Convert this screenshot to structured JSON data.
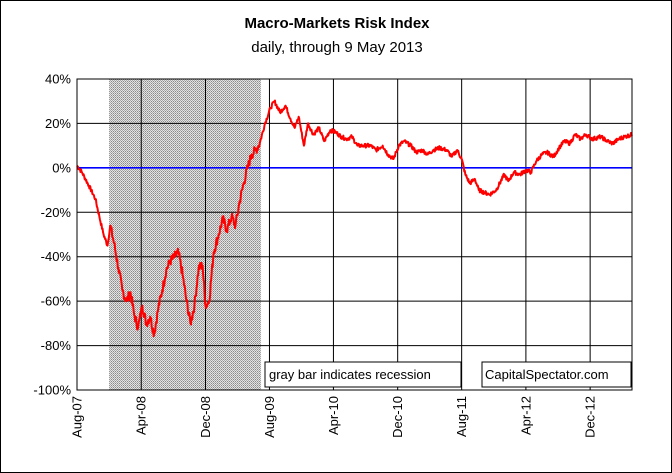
{
  "chart_data": {
    "type": "line",
    "title": "Macro-Markets Risk Index",
    "subtitle": "daily, through 9 May 2013",
    "xlabel": "",
    "ylabel": "",
    "x_tick_labels": [
      "Aug-07",
      "Apr-08",
      "Dec-08",
      "Aug-09",
      "Apr-10",
      "Dec-10",
      "Aug-11",
      "Apr-12",
      "Dec-12"
    ],
    "x_tick_dates": [
      "2007-08-01",
      "2008-04-01",
      "2008-12-01",
      "2009-08-01",
      "2010-04-01",
      "2010-12-01",
      "2011-08-01",
      "2012-04-01",
      "2012-12-01"
    ],
    "xlim": [
      "2007-08-01",
      "2013-05-09"
    ],
    "y_tick_labels": [
      "40%",
      "20%",
      "0%",
      "-20%",
      "-40%",
      "-60%",
      "-80%",
      "-100%"
    ],
    "y_tick_values": [
      40,
      20,
      0,
      -20,
      -40,
      -60,
      -80,
      -100
    ],
    "ylim": [
      -100,
      40
    ],
    "y_unit": "%",
    "grid": true,
    "zero_line_color": "#0000ff",
    "series": [
      {
        "color": "#ff0000",
        "points": [
          [
            "2007-08-01",
            1
          ],
          [
            "2007-08-20",
            -2
          ],
          [
            "2007-09-15",
            -8
          ],
          [
            "2007-10-10",
            -14
          ],
          [
            "2007-10-25",
            -22
          ],
          [
            "2007-11-10",
            -30
          ],
          [
            "2007-11-25",
            -35
          ],
          [
            "2007-12-05",
            -26
          ],
          [
            "2007-12-20",
            -34
          ],
          [
            "2008-01-05",
            -45
          ],
          [
            "2008-01-20",
            -55
          ],
          [
            "2008-02-05",
            -60
          ],
          [
            "2008-02-20",
            -56
          ],
          [
            "2008-03-05",
            -66
          ],
          [
            "2008-03-20",
            -72
          ],
          [
            "2008-04-05",
            -62
          ],
          [
            "2008-04-20",
            -70
          ],
          [
            "2008-05-05",
            -67
          ],
          [
            "2008-05-20",
            -75
          ],
          [
            "2008-06-05",
            -63
          ],
          [
            "2008-06-20",
            -55
          ],
          [
            "2008-07-05",
            -46
          ],
          [
            "2008-07-20",
            -42
          ],
          [
            "2008-08-05",
            -40
          ],
          [
            "2008-08-20",
            -38
          ],
          [
            "2008-09-05",
            -48
          ],
          [
            "2008-09-20",
            -60
          ],
          [
            "2008-10-05",
            -70
          ],
          [
            "2008-10-20",
            -62
          ],
          [
            "2008-11-05",
            -45
          ],
          [
            "2008-11-20",
            -44
          ],
          [
            "2008-12-01",
            -62
          ],
          [
            "2008-12-15",
            -60
          ],
          [
            "2009-01-01",
            -38
          ],
          [
            "2009-01-20",
            -30
          ],
          [
            "2009-02-05",
            -23
          ],
          [
            "2009-02-20",
            -28
          ],
          [
            "2009-03-10",
            -22
          ],
          [
            "2009-03-25",
            -26
          ],
          [
            "2009-04-10",
            -15
          ],
          [
            "2009-04-25",
            -7
          ],
          [
            "2009-05-10",
            0
          ],
          [
            "2009-05-25",
            6
          ],
          [
            "2009-06-10",
            8
          ],
          [
            "2009-06-25",
            11
          ],
          [
            "2009-07-15",
            20
          ],
          [
            "2009-08-05",
            27
          ],
          [
            "2009-08-20",
            30
          ],
          [
            "2009-09-10",
            25
          ],
          [
            "2009-10-01",
            28
          ],
          [
            "2009-10-20",
            22
          ],
          [
            "2009-11-05",
            18
          ],
          [
            "2009-11-20",
            23
          ],
          [
            "2009-12-10",
            10
          ],
          [
            "2009-12-25",
            20
          ],
          [
            "2010-01-15",
            15
          ],
          [
            "2010-02-05",
            18
          ],
          [
            "2010-02-25",
            12
          ],
          [
            "2010-03-20",
            17
          ],
          [
            "2010-04-10",
            16
          ],
          [
            "2010-05-01",
            14
          ],
          [
            "2010-05-20",
            13
          ],
          [
            "2010-06-10",
            14
          ],
          [
            "2010-07-01",
            10
          ],
          [
            "2010-07-25",
            10
          ],
          [
            "2010-08-20",
            10
          ],
          [
            "2010-09-10",
            8
          ],
          [
            "2010-10-05",
            10
          ],
          [
            "2010-10-25",
            6
          ],
          [
            "2010-11-15",
            4
          ],
          [
            "2010-12-05",
            10
          ],
          [
            "2010-12-25",
            12
          ],
          [
            "2011-01-20",
            10
          ],
          [
            "2011-02-10",
            7
          ],
          [
            "2011-03-05",
            8
          ],
          [
            "2011-03-25",
            6
          ],
          [
            "2011-04-15",
            8
          ],
          [
            "2011-05-10",
            9
          ],
          [
            "2011-06-05",
            8
          ],
          [
            "2011-06-25",
            5
          ],
          [
            "2011-07-15",
            8
          ],
          [
            "2011-08-01",
            4
          ],
          [
            "2011-08-15",
            -3
          ],
          [
            "2011-09-01",
            -7
          ],
          [
            "2011-09-20",
            -5
          ],
          [
            "2011-10-05",
            -10
          ],
          [
            "2011-10-25",
            -11
          ],
          [
            "2011-11-15",
            -12
          ],
          [
            "2011-12-10",
            -10
          ],
          [
            "2012-01-10",
            -3
          ],
          [
            "2012-01-25",
            -6
          ],
          [
            "2012-02-15",
            -2
          ],
          [
            "2012-03-10",
            -3
          ],
          [
            "2012-04-01",
            -1
          ],
          [
            "2012-04-20",
            -2
          ],
          [
            "2012-05-10",
            3
          ],
          [
            "2012-06-01",
            6
          ],
          [
            "2012-06-20",
            7
          ],
          [
            "2012-07-15",
            5
          ],
          [
            "2012-08-05",
            9
          ],
          [
            "2012-08-25",
            12
          ],
          [
            "2012-09-15",
            11
          ],
          [
            "2012-10-05",
            15
          ],
          [
            "2012-10-25",
            13
          ],
          [
            "2012-11-15",
            15
          ],
          [
            "2012-12-10",
            13
          ],
          [
            "2013-01-10",
            14
          ],
          [
            "2013-02-05",
            12
          ],
          [
            "2013-02-25",
            11
          ],
          [
            "2013-03-20",
            13
          ],
          [
            "2013-04-10",
            14
          ],
          [
            "2013-05-09",
            15
          ]
        ]
      }
    ],
    "shaded_regions": [
      {
        "start": "2007-12-01",
        "end": "2009-06-30",
        "color": "#c0c0c0"
      }
    ],
    "annotations": [
      "gray bar indicates recession",
      "CapitalSpectator.com"
    ]
  }
}
